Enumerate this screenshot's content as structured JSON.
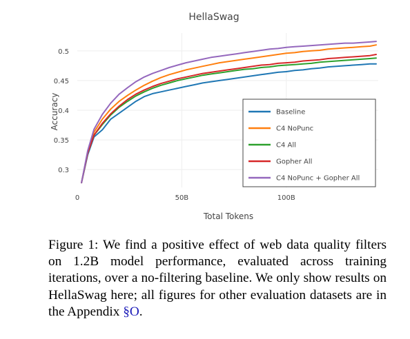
{
  "chart_data": {
    "type": "line",
    "title": "HellaSwag",
    "xlabel": "Total Tokens",
    "ylabel": "Accuracy",
    "xlim": [
      0,
      144
    ],
    "ylim": [
      0.27,
      0.53
    ],
    "x_ticks": [
      {
        "value": 0,
        "label": "0"
      },
      {
        "value": 50,
        "label": "50B"
      },
      {
        "value": 100,
        "label": "100B"
      }
    ],
    "y_ticks": [
      {
        "value": 0.3,
        "label": "0.3"
      },
      {
        "value": 0.35,
        "label": "0.35"
      },
      {
        "value": 0.4,
        "label": "0.4"
      },
      {
        "value": 0.45,
        "label": "0.45"
      },
      {
        "value": 0.5,
        "label": "0.5"
      }
    ],
    "grid": true,
    "legend_position": "center-right",
    "x_units": "B tokens",
    "series": [
      {
        "name": "Baseline",
        "color": "#1f77b4",
        "points": [
          [
            2,
            0.278
          ],
          [
            5,
            0.325
          ],
          [
            8,
            0.355
          ],
          [
            12,
            0.367
          ],
          [
            16,
            0.385
          ],
          [
            20,
            0.395
          ],
          [
            24,
            0.405
          ],
          [
            28,
            0.415
          ],
          [
            32,
            0.423
          ],
          [
            36,
            0.428
          ],
          [
            40,
            0.431
          ],
          [
            44,
            0.434
          ],
          [
            48,
            0.437
          ],
          [
            52,
            0.44
          ],
          [
            56,
            0.443
          ],
          [
            60,
            0.446
          ],
          [
            64,
            0.448
          ],
          [
            68,
            0.45
          ],
          [
            72,
            0.452
          ],
          [
            76,
            0.454
          ],
          [
            80,
            0.456
          ],
          [
            84,
            0.458
          ],
          [
            88,
            0.46
          ],
          [
            92,
            0.462
          ],
          [
            96,
            0.464
          ],
          [
            100,
            0.465
          ],
          [
            104,
            0.467
          ],
          [
            108,
            0.468
          ],
          [
            112,
            0.47
          ],
          [
            116,
            0.471
          ],
          [
            120,
            0.473
          ],
          [
            124,
            0.474
          ],
          [
            128,
            0.475
          ],
          [
            132,
            0.476
          ],
          [
            136,
            0.477
          ],
          [
            140,
            0.478
          ],
          [
            143,
            0.478
          ]
        ]
      },
      {
        "name": "C4 NoPunc",
        "color": "#ff7f0e",
        "points": [
          [
            2,
            0.278
          ],
          [
            5,
            0.33
          ],
          [
            8,
            0.363
          ],
          [
            12,
            0.385
          ],
          [
            16,
            0.402
          ],
          [
            20,
            0.415
          ],
          [
            24,
            0.425
          ],
          [
            28,
            0.434
          ],
          [
            32,
            0.442
          ],
          [
            36,
            0.449
          ],
          [
            40,
            0.455
          ],
          [
            44,
            0.46
          ],
          [
            48,
            0.464
          ],
          [
            52,
            0.468
          ],
          [
            56,
            0.471
          ],
          [
            60,
            0.474
          ],
          [
            64,
            0.477
          ],
          [
            68,
            0.48
          ],
          [
            72,
            0.482
          ],
          [
            76,
            0.484
          ],
          [
            80,
            0.486
          ],
          [
            84,
            0.488
          ],
          [
            88,
            0.49
          ],
          [
            92,
            0.492
          ],
          [
            96,
            0.494
          ],
          [
            100,
            0.496
          ],
          [
            104,
            0.497
          ],
          [
            108,
            0.499
          ],
          [
            112,
            0.5
          ],
          [
            116,
            0.501
          ],
          [
            120,
            0.503
          ],
          [
            124,
            0.504
          ],
          [
            128,
            0.505
          ],
          [
            132,
            0.506
          ],
          [
            136,
            0.507
          ],
          [
            140,
            0.508
          ],
          [
            143,
            0.51
          ]
        ]
      },
      {
        "name": "C4 All",
        "color": "#2ca02c",
        "points": [
          [
            2,
            0.278
          ],
          [
            5,
            0.328
          ],
          [
            8,
            0.358
          ],
          [
            12,
            0.376
          ],
          [
            16,
            0.392
          ],
          [
            20,
            0.405
          ],
          [
            24,
            0.415
          ],
          [
            28,
            0.424
          ],
          [
            32,
            0.431
          ],
          [
            36,
            0.437
          ],
          [
            40,
            0.442
          ],
          [
            44,
            0.446
          ],
          [
            48,
            0.45
          ],
          [
            52,
            0.453
          ],
          [
            56,
            0.456
          ],
          [
            60,
            0.459
          ],
          [
            64,
            0.461
          ],
          [
            68,
            0.463
          ],
          [
            72,
            0.465
          ],
          [
            76,
            0.467
          ],
          [
            80,
            0.469
          ],
          [
            84,
            0.47
          ],
          [
            88,
            0.472
          ],
          [
            92,
            0.473
          ],
          [
            96,
            0.475
          ],
          [
            100,
            0.476
          ],
          [
            104,
            0.477
          ],
          [
            108,
            0.478
          ],
          [
            112,
            0.479
          ],
          [
            116,
            0.481
          ],
          [
            120,
            0.482
          ],
          [
            124,
            0.483
          ],
          [
            128,
            0.484
          ],
          [
            132,
            0.485
          ],
          [
            136,
            0.486
          ],
          [
            140,
            0.487
          ],
          [
            143,
            0.488
          ]
        ]
      },
      {
        "name": "Gopher All",
        "color": "#d62728",
        "points": [
          [
            2,
            0.278
          ],
          [
            5,
            0.328
          ],
          [
            8,
            0.358
          ],
          [
            12,
            0.378
          ],
          [
            16,
            0.394
          ],
          [
            20,
            0.407
          ],
          [
            24,
            0.418
          ],
          [
            28,
            0.427
          ],
          [
            32,
            0.434
          ],
          [
            36,
            0.44
          ],
          [
            40,
            0.445
          ],
          [
            44,
            0.449
          ],
          [
            48,
            0.453
          ],
          [
            52,
            0.456
          ],
          [
            56,
            0.459
          ],
          [
            60,
            0.462
          ],
          [
            64,
            0.464
          ],
          [
            68,
            0.466
          ],
          [
            72,
            0.468
          ],
          [
            76,
            0.47
          ],
          [
            80,
            0.472
          ],
          [
            84,
            0.474
          ],
          [
            88,
            0.476
          ],
          [
            92,
            0.477
          ],
          [
            96,
            0.479
          ],
          [
            100,
            0.48
          ],
          [
            104,
            0.481
          ],
          [
            108,
            0.483
          ],
          [
            112,
            0.484
          ],
          [
            116,
            0.485
          ],
          [
            120,
            0.487
          ],
          [
            124,
            0.488
          ],
          [
            128,
            0.489
          ],
          [
            132,
            0.49
          ],
          [
            136,
            0.491
          ],
          [
            140,
            0.492
          ],
          [
            143,
            0.494
          ]
        ]
      },
      {
        "name": "C4 NoPunc + Gopher All",
        "color": "#9467bd",
        "points": [
          [
            2,
            0.278
          ],
          [
            5,
            0.332
          ],
          [
            8,
            0.368
          ],
          [
            12,
            0.393
          ],
          [
            16,
            0.412
          ],
          [
            20,
            0.427
          ],
          [
            24,
            0.438
          ],
          [
            28,
            0.448
          ],
          [
            32,
            0.456
          ],
          [
            36,
            0.462
          ],
          [
            40,
            0.467
          ],
          [
            44,
            0.472
          ],
          [
            48,
            0.476
          ],
          [
            52,
            0.48
          ],
          [
            56,
            0.483
          ],
          [
            60,
            0.486
          ],
          [
            64,
            0.489
          ],
          [
            68,
            0.491
          ],
          [
            72,
            0.493
          ],
          [
            76,
            0.495
          ],
          [
            80,
            0.497
          ],
          [
            84,
            0.499
          ],
          [
            88,
            0.501
          ],
          [
            92,
            0.503
          ],
          [
            96,
            0.504
          ],
          [
            100,
            0.506
          ],
          [
            104,
            0.507
          ],
          [
            108,
            0.508
          ],
          [
            112,
            0.509
          ],
          [
            116,
            0.51
          ],
          [
            120,
            0.511
          ],
          [
            124,
            0.512
          ],
          [
            128,
            0.513
          ],
          [
            132,
            0.513
          ],
          [
            136,
            0.514
          ],
          [
            140,
            0.515
          ],
          [
            143,
            0.516
          ]
        ]
      }
    ]
  },
  "caption": {
    "text": "Figure 1: We find a positive effect of web data quality filters on 1.2B model performance, evaluated across training iterations, over a no-filtering baseline. We only show results on HellaSwag here; all figures for other evaluation datasets are in the Appendix ",
    "ref": "§O",
    "end": "."
  }
}
